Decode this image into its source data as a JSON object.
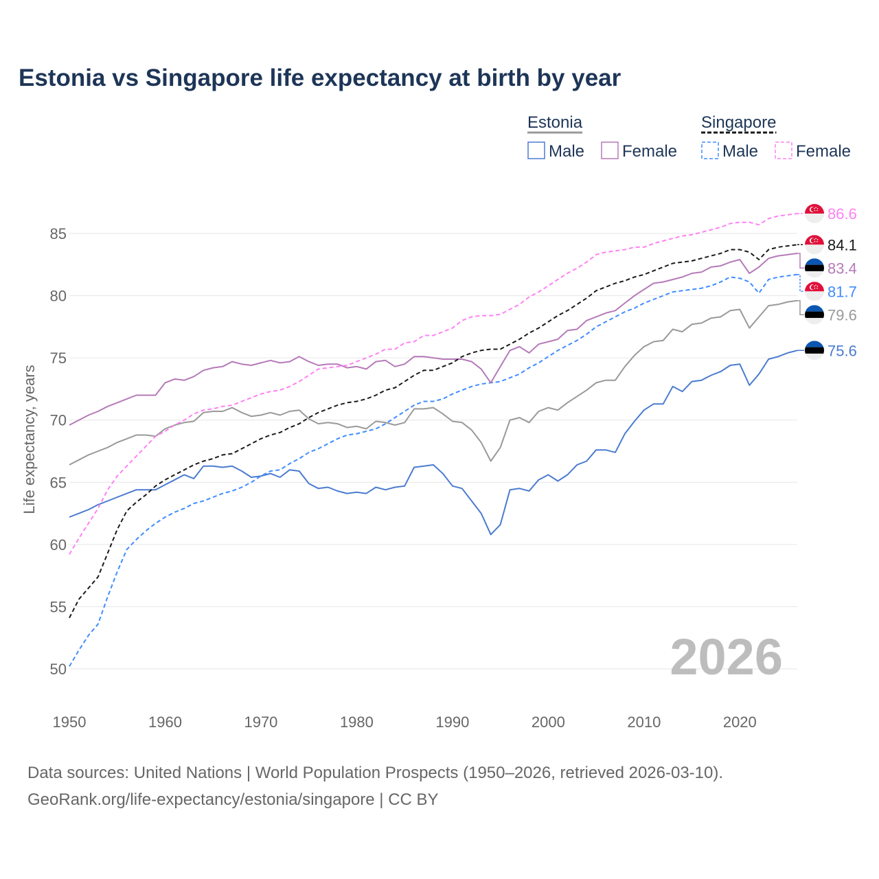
{
  "chart_data": {
    "type": "line",
    "title": "Estonia vs Singapore life expectancy at birth by year",
    "xlabel": "",
    "ylabel": "Life expectancy, years",
    "xlim": [
      1950,
      2026
    ],
    "ylim": [
      49,
      87.5
    ],
    "xticks": [
      1950,
      1960,
      1970,
      1980,
      1990,
      2000,
      2010,
      2020
    ],
    "yticks": [
      50,
      55,
      60,
      65,
      70,
      75,
      80,
      85
    ],
    "grid": true,
    "watermark_year": "2026",
    "legend": {
      "placement": "top-right",
      "groups": [
        {
          "name": "Estonia",
          "items": [
            "Male",
            "Female"
          ]
        },
        {
          "name": "Singapore",
          "items": [
            "Male",
            "Female"
          ]
        }
      ]
    },
    "x_start": 1950,
    "series": [
      {
        "name": "Singapore Female",
        "country": "Singapore",
        "color": "#ff80f4",
        "dashed": true,
        "end_label": "86.6",
        "values": [
          59.2,
          60.5,
          61.7,
          62.9,
          64.4,
          65.5,
          66.3,
          67.1,
          67.9,
          68.7,
          69.1,
          69.6,
          70.0,
          70.5,
          70.8,
          70.9,
          71.1,
          71.2,
          71.5,
          71.8,
          72.1,
          72.3,
          72.4,
          72.7,
          73.1,
          73.6,
          74.1,
          74.2,
          74.3,
          74.4,
          74.7,
          75.0,
          75.3,
          75.7,
          75.7,
          76.2,
          76.3,
          76.8,
          76.8,
          77.1,
          77.4,
          78.0,
          78.3,
          78.4,
          78.4,
          78.5,
          78.9,
          79.3,
          79.9,
          80.3,
          80.8,
          81.3,
          81.8,
          82.2,
          82.7,
          83.3,
          83.5,
          83.6,
          83.7,
          83.9,
          83.9,
          84.2,
          84.4,
          84.6,
          84.8,
          84.9,
          85.1,
          85.3,
          85.5,
          85.8,
          85.9,
          85.9,
          85.7,
          86.2,
          86.4,
          86.5,
          86.6
        ]
      },
      {
        "name": "Singapore",
        "country": "Singapore",
        "color": "#1a1a1a",
        "dashed": true,
        "end_label": "84.1",
        "values": [
          54.1,
          55.6,
          56.5,
          57.4,
          59.3,
          61.2,
          62.7,
          63.4,
          64.0,
          64.7,
          65.2,
          65.6,
          66.0,
          66.4,
          66.7,
          66.9,
          67.2,
          67.3,
          67.7,
          68.1,
          68.5,
          68.8,
          69.0,
          69.4,
          69.7,
          70.2,
          70.6,
          70.9,
          71.2,
          71.4,
          71.5,
          71.7,
          72.0,
          72.4,
          72.6,
          73.1,
          73.6,
          74.0,
          74.0,
          74.3,
          74.6,
          75.1,
          75.4,
          75.6,
          75.7,
          75.7,
          76.1,
          76.5,
          77.0,
          77.4,
          77.9,
          78.4,
          78.8,
          79.3,
          79.8,
          80.4,
          80.7,
          81.0,
          81.2,
          81.5,
          81.7,
          82.0,
          82.3,
          82.6,
          82.7,
          82.8,
          83.0,
          83.2,
          83.4,
          83.7,
          83.7,
          83.5,
          82.9,
          83.7,
          83.9,
          84.0,
          84.1
        ]
      },
      {
        "name": "Estonia Female",
        "country": "Estonia",
        "color": "#b57ab8",
        "dashed": false,
        "end_label": "83.4",
        "values": [
          69.6,
          70.0,
          70.4,
          70.7,
          71.1,
          71.4,
          71.7,
          72.0,
          72.0,
          72.0,
          73.0,
          73.3,
          73.2,
          73.5,
          74.0,
          74.2,
          74.3,
          74.7,
          74.5,
          74.4,
          74.6,
          74.8,
          74.6,
          74.7,
          75.1,
          74.7,
          74.4,
          74.5,
          74.5,
          74.2,
          74.3,
          74.1,
          74.7,
          74.8,
          74.3,
          74.5,
          75.1,
          75.1,
          75.0,
          74.9,
          74.9,
          74.9,
          74.7,
          74.1,
          73.0,
          74.3,
          75.6,
          75.9,
          75.4,
          76.1,
          76.3,
          76.5,
          77.2,
          77.3,
          78.0,
          78.3,
          78.6,
          78.8,
          79.4,
          80.0,
          80.5,
          81.0,
          81.1,
          81.3,
          81.5,
          81.8,
          81.9,
          82.3,
          82.4,
          82.7,
          82.9,
          81.8,
          82.3,
          83.0,
          83.2,
          83.3,
          83.4
        ]
      },
      {
        "name": "Singapore Male",
        "country": "Singapore",
        "color": "#3f8cff",
        "dashed": true,
        "end_label": "81.7",
        "values": [
          50.2,
          51.5,
          52.7,
          53.6,
          55.8,
          57.8,
          59.6,
          60.4,
          61.1,
          61.7,
          62.2,
          62.6,
          62.9,
          63.3,
          63.5,
          63.8,
          64.1,
          64.3,
          64.6,
          65.0,
          65.5,
          65.9,
          66.0,
          66.5,
          66.9,
          67.4,
          67.7,
          68.1,
          68.5,
          68.8,
          68.9,
          69.1,
          69.3,
          69.7,
          70.2,
          70.7,
          71.2,
          71.5,
          71.5,
          71.7,
          72.1,
          72.4,
          72.7,
          72.9,
          73.0,
          73.1,
          73.4,
          73.7,
          74.2,
          74.6,
          75.1,
          75.6,
          76.0,
          76.4,
          76.9,
          77.5,
          77.9,
          78.3,
          78.7,
          79.0,
          79.4,
          79.7,
          80.0,
          80.3,
          80.4,
          80.5,
          80.6,
          80.8,
          81.1,
          81.5,
          81.4,
          81.1,
          80.2,
          81.3,
          81.5,
          81.6,
          81.7
        ]
      },
      {
        "name": "Estonia",
        "country": "Estonia",
        "color": "#999999",
        "dashed": false,
        "end_label": "79.6",
        "values": [
          66.4,
          66.8,
          67.2,
          67.5,
          67.8,
          68.2,
          68.5,
          68.8,
          68.8,
          68.7,
          69.3,
          69.6,
          69.8,
          69.9,
          70.6,
          70.7,
          70.7,
          71.0,
          70.6,
          70.3,
          70.4,
          70.6,
          70.4,
          70.7,
          70.8,
          70.1,
          69.7,
          69.8,
          69.7,
          69.4,
          69.5,
          69.3,
          69.9,
          69.8,
          69.6,
          69.8,
          70.9,
          70.9,
          71.0,
          70.5,
          69.9,
          69.8,
          69.2,
          68.2,
          66.7,
          67.8,
          70.0,
          70.2,
          69.8,
          70.7,
          71.0,
          70.8,
          71.4,
          71.9,
          72.4,
          73.0,
          73.2,
          73.2,
          74.3,
          75.2,
          75.9,
          76.3,
          76.4,
          77.3,
          77.1,
          77.7,
          77.8,
          78.2,
          78.3,
          78.8,
          78.9,
          77.4,
          78.3,
          79.2,
          79.3,
          79.5,
          79.6
        ]
      },
      {
        "name": "Estonia Male",
        "country": "Estonia",
        "color": "#4a7bd0",
        "dashed": false,
        "end_label": "75.6",
        "values": [
          62.2,
          62.5,
          62.8,
          63.2,
          63.5,
          63.8,
          64.1,
          64.4,
          64.4,
          64.4,
          64.8,
          65.2,
          65.6,
          65.3,
          66.3,
          66.3,
          66.2,
          66.3,
          65.9,
          65.4,
          65.5,
          65.7,
          65.4,
          66.0,
          65.9,
          64.9,
          64.5,
          64.6,
          64.3,
          64.1,
          64.2,
          64.1,
          64.6,
          64.4,
          64.6,
          64.7,
          66.2,
          66.3,
          66.4,
          65.7,
          64.7,
          64.5,
          63.5,
          62.5,
          60.8,
          61.6,
          64.4,
          64.5,
          64.3,
          65.2,
          65.6,
          65.1,
          65.6,
          66.4,
          66.7,
          67.6,
          67.6,
          67.4,
          68.9,
          69.9,
          70.8,
          71.3,
          71.3,
          72.7,
          72.3,
          73.1,
          73.2,
          73.6,
          73.9,
          74.4,
          74.5,
          72.8,
          73.7,
          74.9,
          75.1,
          75.4,
          75.6
        ]
      }
    ]
  },
  "source": {
    "line1": "Data sources: United Nations | World Population Prospects (1950–2026, retrieved 2026-03-10).",
    "line2": "GeoRank.org/life-expectancy/estonia/singapore | CC BY"
  }
}
